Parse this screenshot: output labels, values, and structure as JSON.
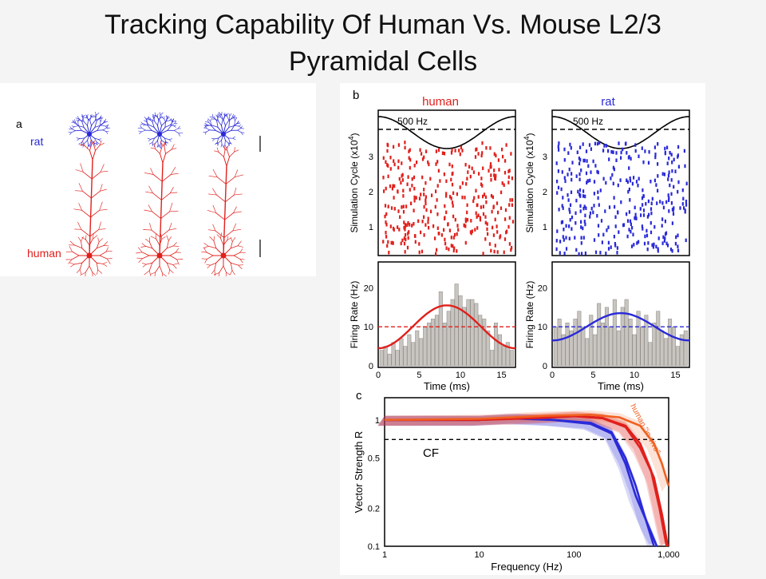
{
  "slide": {
    "title_line1": "Tracking Capability Of Human Vs. Mouse L2/3",
    "title_line2": "Pyramidal Cells"
  },
  "panel_a": {
    "letter": "a",
    "rat_label": "rat",
    "human_label": "human",
    "colors": {
      "rat": "#2a2ad8",
      "human": "#e0201c"
    }
  },
  "panel_b": {
    "letter": "b",
    "human_title": "human",
    "rat_title": "rat",
    "stim_label": "500 Hz",
    "raster_ylabel": "Simulation Cycle (x10",
    "raster_ylabel_sup": "4",
    "raster_ylabel_end": ")",
    "raster_yticks": [
      "1",
      "2",
      "3"
    ],
    "rate_ylabel": "Firing Rate (Hz)",
    "rate_yticks": [
      "0",
      "10",
      "20"
    ],
    "xlabel": "Time (ms)",
    "xticks": [
      "0",
      "5",
      "10",
      "15"
    ]
  },
  "panel_c": {
    "letter": "c",
    "ylabel": "Vector Strength R",
    "yticks": [
      "0.1",
      "0.2",
      "0.5",
      "1"
    ],
    "xlabel": "Frequency (Hz)",
    "xticks": [
      "1",
      "10",
      "100",
      "1,000"
    ],
    "cf_label": "CF",
    "curve_label": "human \"in-vivo\""
  },
  "chart_data": [
    {
      "type": "bar",
      "panel": "b-human-histogram",
      "xlabel": "Time (ms)",
      "ylabel": "Firing Rate (Hz)",
      "xlim": [
        0,
        16.7
      ],
      "ylim": [
        0,
        25
      ],
      "bin_width_ms": 0.5,
      "values": [
        4,
        5,
        3,
        6,
        4,
        7,
        5,
        8,
        6,
        9,
        7,
        10,
        11,
        12,
        13,
        19,
        11,
        14,
        17,
        21,
        18,
        15,
        17,
        17,
        16,
        13,
        12,
        9,
        4,
        11,
        8,
        5,
        6,
        4
      ],
      "fit_curve": {
        "mean": 10,
        "amplitude": 5.5,
        "period_ms": 2
      },
      "mean_line": 10,
      "colors": {
        "bars": "#c8c4c0",
        "fit": "#e0201c"
      }
    },
    {
      "type": "bar",
      "panel": "b-rat-histogram",
      "xlabel": "Time (ms)",
      "ylabel": "Firing Rate (Hz)",
      "xlim": [
        0,
        16.7
      ],
      "ylim": [
        0,
        25
      ],
      "bin_width_ms": 0.5,
      "values": [
        10,
        12,
        8,
        11,
        9,
        12,
        14,
        10,
        7,
        13,
        8,
        16,
        11,
        15,
        10,
        17,
        9,
        15,
        17,
        12,
        8,
        14,
        10,
        13,
        6,
        11,
        14,
        9,
        7,
        12,
        10,
        5,
        8,
        9
      ],
      "fit_curve": {
        "mean": 10,
        "amplitude": 3.5,
        "period_ms": 2
      },
      "mean_line": 10,
      "colors": {
        "bars": "#c8c4c0",
        "fit": "#2a2ad8"
      }
    },
    {
      "type": "line",
      "panel": "c",
      "xlabel": "Frequency (Hz)",
      "ylabel": "Vector Strength R",
      "x_scale": "log",
      "y_scale": "log",
      "xlim": [
        1,
        1000
      ],
      "ylim": [
        0.1,
        1.5
      ],
      "cf_level": 0.7,
      "series": [
        {
          "color": "#2a2ad8",
          "x": [
            1,
            10,
            20,
            60,
            150,
            250,
            350,
            450,
            550,
            700
          ],
          "y": [
            1,
            1,
            1.03,
            1,
            0.95,
            0.8,
            0.5,
            0.3,
            0.18,
            0.1
          ]
        },
        {
          "color": "#2a2ad8",
          "x": [
            1,
            10,
            25,
            60,
            150,
            250,
            350,
            450,
            600,
            750
          ],
          "y": [
            1,
            1,
            1.04,
            1,
            0.93,
            0.78,
            0.45,
            0.25,
            0.15,
            0.1
          ]
        },
        {
          "color": "#e0201c",
          "x": [
            1,
            10,
            50,
            100,
            200,
            350,
            500,
            650,
            800,
            950
          ],
          "y": [
            1,
            1,
            1.05,
            1.08,
            1.04,
            0.9,
            0.65,
            0.4,
            0.2,
            0.1
          ]
        },
        {
          "color": "#e0201c",
          "x": [
            1,
            10,
            50,
            100,
            200,
            350,
            500,
            700,
            850,
            980
          ],
          "y": [
            1,
            1,
            1.04,
            1.07,
            1.03,
            0.88,
            0.6,
            0.35,
            0.18,
            0.1
          ]
        },
        {
          "color": "#f06020",
          "x": [
            1,
            10,
            50,
            150,
            300,
            500,
            700,
            850,
            1000
          ],
          "y": [
            1,
            1.02,
            1.08,
            1.1,
            1.05,
            0.9,
            0.65,
            0.45,
            0.3
          ]
        }
      ]
    }
  ]
}
